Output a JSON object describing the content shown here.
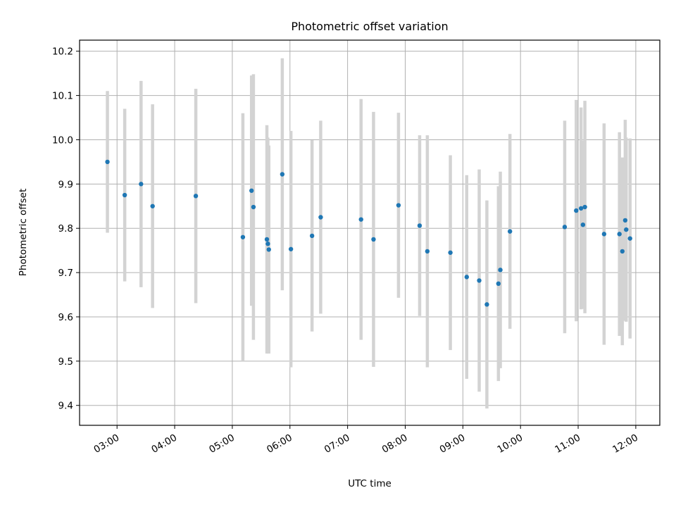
{
  "chart_data": {
    "type": "scatter",
    "title": "Photometric offset variation",
    "xlabel": "UTC time",
    "ylabel": "Photometric offset",
    "x_unit": "UTC time (HH:MM)",
    "x_ticks": [
      "03:00",
      "04:00",
      "05:00",
      "06:00",
      "07:00",
      "08:00",
      "09:00",
      "10:00",
      "11:00",
      "12:00"
    ],
    "y_ticks": [
      "9.4",
      "9.5",
      "9.6",
      "9.7",
      "9.8",
      "9.9",
      "10.0",
      "10.1",
      "10.2"
    ],
    "xlim": [
      "02:21",
      "12:25"
    ],
    "ylim": [
      9.355,
      10.225
    ],
    "grid": true,
    "point_color": "#1f77b4",
    "errorbar_color": "#d3d3d3",
    "points": [
      {
        "x": "02:50",
        "y": 9.95,
        "err": 0.16
      },
      {
        "x": "03:08",
        "y": 9.875,
        "err": 0.195
      },
      {
        "x": "03:25",
        "y": 9.9,
        "err": 0.233
      },
      {
        "x": "03:37",
        "y": 9.85,
        "err": 0.23
      },
      {
        "x": "04:22",
        "y": 9.873,
        "err": 0.242
      },
      {
        "x": "05:11",
        "y": 9.78,
        "err": 0.28
      },
      {
        "x": "05:20",
        "y": 9.885,
        "err": 0.26
      },
      {
        "x": "05:22",
        "y": 9.848,
        "err": 0.3
      },
      {
        "x": "05:36",
        "y": 9.775,
        "err": 0.258
      },
      {
        "x": "05:37",
        "y": 9.765,
        "err": 0.24
      },
      {
        "x": "05:38",
        "y": 9.752,
        "err": 0.235
      },
      {
        "x": "05:52",
        "y": 9.922,
        "err": 0.262
      },
      {
        "x": "06:01",
        "y": 9.753,
        "err": 0.267
      },
      {
        "x": "06:23",
        "y": 9.783,
        "err": 0.216
      },
      {
        "x": "06:32",
        "y": 9.825,
        "err": 0.218
      },
      {
        "x": "07:14",
        "y": 9.82,
        "err": 0.272
      },
      {
        "x": "07:27",
        "y": 9.775,
        "err": 0.288
      },
      {
        "x": "07:53",
        "y": 9.852,
        "err": 0.209
      },
      {
        "x": "08:15",
        "y": 9.806,
        "err": 0.204
      },
      {
        "x": "08:23",
        "y": 9.748,
        "err": 0.262
      },
      {
        "x": "08:47",
        "y": 9.745,
        "err": 0.22
      },
      {
        "x": "09:04",
        "y": 9.69,
        "err": 0.23
      },
      {
        "x": "09:17",
        "y": 9.682,
        "err": 0.251
      },
      {
        "x": "09:25",
        "y": 9.628,
        "err": 0.235
      },
      {
        "x": "09:37",
        "y": 9.675,
        "err": 0.22
      },
      {
        "x": "09:39",
        "y": 9.706,
        "err": 0.222
      },
      {
        "x": "09:49",
        "y": 9.793,
        "err": 0.22
      },
      {
        "x": "10:46",
        "y": 9.803,
        "err": 0.24
      },
      {
        "x": "10:58",
        "y": 9.84,
        "err": 0.25
      },
      {
        "x": "11:03",
        "y": 9.845,
        "err": 0.228
      },
      {
        "x": "11:05",
        "y": 9.808,
        "err": 0.19
      },
      {
        "x": "11:07",
        "y": 9.848,
        "err": 0.24
      },
      {
        "x": "11:27",
        "y": 9.787,
        "err": 0.25
      },
      {
        "x": "11:43",
        "y": 9.787,
        "err": 0.23
      },
      {
        "x": "11:46",
        "y": 9.748,
        "err": 0.212
      },
      {
        "x": "11:49",
        "y": 9.818,
        "err": 0.227
      },
      {
        "x": "11:50",
        "y": 9.797,
        "err": 0.208
      },
      {
        "x": "11:54",
        "y": 9.777,
        "err": 0.226
      }
    ]
  }
}
